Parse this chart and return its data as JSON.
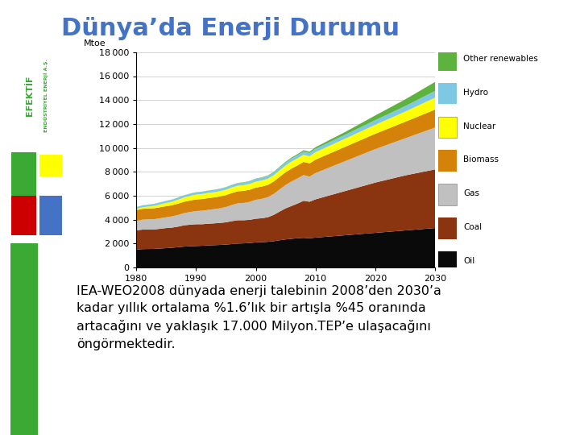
{
  "title": "Dünya’da Enerji Durumu",
  "ylabel": "Mtoe",
  "years": [
    1980,
    1981,
    1982,
    1983,
    1984,
    1985,
    1986,
    1987,
    1988,
    1989,
    1990,
    1991,
    1992,
    1993,
    1994,
    1995,
    1996,
    1997,
    1998,
    1999,
    2000,
    2001,
    2002,
    2003,
    2004,
    2005,
    2006,
    2007,
    2008,
    2009,
    2010,
    2015,
    2020,
    2025,
    2030
  ],
  "series": {
    "Oil": [
      1500,
      1540,
      1550,
      1560,
      1590,
      1620,
      1660,
      1700,
      1750,
      1780,
      1800,
      1820,
      1850,
      1870,
      1890,
      1920,
      1960,
      2000,
      2020,
      2050,
      2100,
      2120,
      2150,
      2200,
      2280,
      2350,
      2400,
      2450,
      2480,
      2450,
      2500,
      2700,
      2900,
      3100,
      3300
    ],
    "Coal": [
      1600,
      1630,
      1640,
      1620,
      1650,
      1680,
      1680,
      1720,
      1780,
      1800,
      1820,
      1800,
      1810,
      1820,
      1840,
      1860,
      1920,
      1950,
      1930,
      1940,
      1980,
      2000,
      2050,
      2200,
      2400,
      2600,
      2750,
      2900,
      3100,
      3050,
      3200,
      3700,
      4200,
      4600,
      4900
    ],
    "Gas": [
      800,
      830,
      840,
      860,
      880,
      900,
      940,
      980,
      1020,
      1060,
      1100,
      1130,
      1160,
      1190,
      1220,
      1280,
      1350,
      1420,
      1450,
      1500,
      1580,
      1620,
      1680,
      1750,
      1850,
      1950,
      2050,
      2100,
      2150,
      2100,
      2200,
      2500,
      2800,
      3100,
      3500
    ],
    "Biomass": [
      900,
      905,
      910,
      915,
      920,
      925,
      930,
      940,
      950,
      960,
      970,
      975,
      980,
      985,
      990,
      995,
      1000,
      1005,
      1010,
      1015,
      1020,
      1025,
      1030,
      1040,
      1055,
      1070,
      1080,
      1090,
      1100,
      1105,
      1120,
      1200,
      1280,
      1380,
      1500
    ],
    "Nuclear": [
      100,
      130,
      160,
      200,
      240,
      270,
      300,
      330,
      360,
      390,
      410,
      420,
      430,
      430,
      440,
      450,
      460,
      470,
      480,
      490,
      500,
      510,
      510,
      520,
      540,
      560,
      580,
      590,
      600,
      590,
      620,
      680,
      750,
      850,
      1000
    ],
    "Hydro": [
      150,
      155,
      158,
      162,
      165,
      168,
      172,
      176,
      180,
      183,
      186,
      189,
      192,
      195,
      198,
      201,
      206,
      210,
      214,
      218,
      222,
      226,
      230,
      236,
      242,
      250,
      258,
      265,
      272,
      275,
      285,
      330,
      390,
      460,
      560
    ],
    "Other renewables": [
      5,
      6,
      6,
      7,
      8,
      8,
      9,
      10,
      10,
      11,
      12,
      13,
      14,
      15,
      16,
      18,
      20,
      22,
      25,
      28,
      32,
      36,
      40,
      48,
      58,
      68,
      80,
      92,
      105,
      110,
      135,
      230,
      390,
      560,
      750
    ]
  },
  "colors": {
    "Oil": "#0a0a0a",
    "Coal": "#8B3510",
    "Gas": "#C0C0C0",
    "Biomass": "#D4820A",
    "Nuclear": "#FFFF00",
    "Hydro": "#7EC8E3",
    "Other renewables": "#5DB33D"
  },
  "legend_order": [
    "Other renewables",
    "Hydro",
    "Nuclear",
    "Biomass",
    "Gas",
    "Coal",
    "Oil"
  ],
  "xlim": [
    1980,
    2030
  ],
  "ylim": [
    0,
    18000
  ],
  "yticks": [
    0,
    2000,
    4000,
    6000,
    8000,
    10000,
    12000,
    14000,
    16000,
    18000
  ],
  "xticks": [
    1980,
    1990,
    2000,
    2010,
    2020,
    2030
  ],
  "background_color": "#FFFFFF",
  "title_color": "#4472C4",
  "sidebar_green": "#3AAA35",
  "sidebar_red": "#CC0000",
  "sidebar_blue": "#4472C4",
  "sidebar_yellow": "#FFFF00"
}
